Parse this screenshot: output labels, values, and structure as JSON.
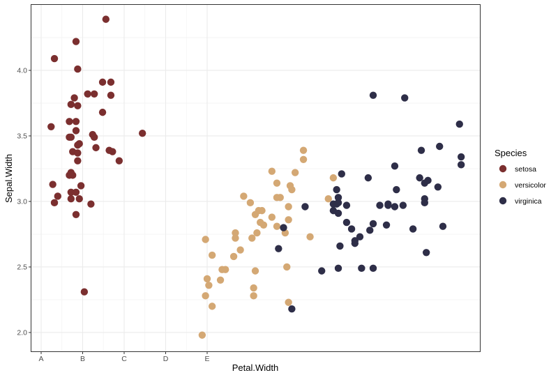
{
  "chart_data": {
    "type": "scatter",
    "xlabel": "Petal.Width",
    "ylabel": "Sepal.Width",
    "xlim": [
      -0.063,
      2.647
    ],
    "ylim": [
      1.851,
      4.505
    ],
    "x_ticks": [
      {
        "value": 0,
        "label": "A"
      },
      {
        "value": 0.25,
        "label": "B"
      },
      {
        "value": 0.5,
        "label": "C"
      },
      {
        "value": 0.75,
        "label": "D"
      },
      {
        "value": 1.0,
        "label": "E"
      }
    ],
    "y_ticks": [
      {
        "value": 2.0,
        "label": "2.0"
      },
      {
        "value": 2.5,
        "label": "2.5"
      },
      {
        "value": 3.0,
        "label": "3.0"
      },
      {
        "value": 3.5,
        "label": "3.5"
      },
      {
        "value": 4.0,
        "label": "4.0"
      }
    ],
    "grid": true,
    "legend": {
      "title": "Species",
      "position": "right"
    },
    "series": [
      {
        "name": "setosa",
        "color": "#7B2F2F",
        "points": [
          [
            0.39,
            4.39
          ],
          [
            0.21,
            4.22
          ],
          [
            0.08,
            4.09
          ],
          [
            0.22,
            4.01
          ],
          [
            0.37,
            3.91
          ],
          [
            0.42,
            3.91
          ],
          [
            0.28,
            3.82
          ],
          [
            0.32,
            3.82
          ],
          [
            0.42,
            3.81
          ],
          [
            0.2,
            3.79
          ],
          [
            0.18,
            3.74
          ],
          [
            0.22,
            3.73
          ],
          [
            0.37,
            3.68
          ],
          [
            0.17,
            3.61
          ],
          [
            0.21,
            3.61
          ],
          [
            0.06,
            3.57
          ],
          [
            0.21,
            3.54
          ],
          [
            0.61,
            3.52
          ],
          [
            0.17,
            3.49
          ],
          [
            0.18,
            3.49
          ],
          [
            0.31,
            3.51
          ],
          [
            0.32,
            3.49
          ],
          [
            0.23,
            3.44
          ],
          [
            0.22,
            3.43
          ],
          [
            0.33,
            3.41
          ],
          [
            0.41,
            3.39
          ],
          [
            0.43,
            3.38
          ],
          [
            0.19,
            3.38
          ],
          [
            0.22,
            3.37
          ],
          [
            0.47,
            3.31
          ],
          [
            0.22,
            3.31
          ],
          [
            0.18,
            3.22
          ],
          [
            0.17,
            3.2
          ],
          [
            0.19,
            3.2
          ],
          [
            0.07,
            3.13
          ],
          [
            0.24,
            3.12
          ],
          [
            0.18,
            3.07
          ],
          [
            0.21,
            3.07
          ],
          [
            0.1,
            3.04
          ],
          [
            0.18,
            3.02
          ],
          [
            0.23,
            3.02
          ],
          [
            0.08,
            2.99
          ],
          [
            0.3,
            2.98
          ],
          [
            0.21,
            2.9
          ],
          [
            0.26,
            2.31
          ]
        ]
      },
      {
        "name": "versicolor",
        "color": "#D4A874",
        "points": [
          [
            1.58,
            3.39
          ],
          [
            1.58,
            3.32
          ],
          [
            1.39,
            3.23
          ],
          [
            1.53,
            3.22
          ],
          [
            1.42,
            3.14
          ],
          [
            1.5,
            3.12
          ],
          [
            1.51,
            3.09
          ],
          [
            1.42,
            3.03
          ],
          [
            1.44,
            3.03
          ],
          [
            1.22,
            3.04
          ],
          [
            1.26,
            2.99
          ],
          [
            1.49,
            2.96
          ],
          [
            1.31,
            2.93
          ],
          [
            1.33,
            2.93
          ],
          [
            1.29,
            2.9
          ],
          [
            1.39,
            2.88
          ],
          [
            1.49,
            2.86
          ],
          [
            1.32,
            2.84
          ],
          [
            1.34,
            2.82
          ],
          [
            1.42,
            2.81
          ],
          [
            1.47,
            2.76
          ],
          [
            1.17,
            2.76
          ],
          [
            1.17,
            2.72
          ],
          [
            1.3,
            2.76
          ],
          [
            1.27,
            2.72
          ],
          [
            0.99,
            2.71
          ],
          [
            1.2,
            2.63
          ],
          [
            1.16,
            2.58
          ],
          [
            1.03,
            2.59
          ],
          [
            1.09,
            2.48
          ],
          [
            1.11,
            2.48
          ],
          [
            1.08,
            2.4
          ],
          [
            1.0,
            2.41
          ],
          [
            1.01,
            2.36
          ],
          [
            0.99,
            2.28
          ],
          [
            1.29,
            2.47
          ],
          [
            1.48,
            2.5
          ],
          [
            1.28,
            2.34
          ],
          [
            1.28,
            2.28
          ],
          [
            1.03,
            2.2
          ],
          [
            1.49,
            2.23
          ],
          [
            0.97,
            1.98
          ],
          [
            1.73,
            3.02
          ],
          [
            1.62,
            2.73
          ],
          [
            1.76,
            3.18
          ]
        ]
      },
      {
        "name": "virginica",
        "color": "#2E2E48",
        "points": [
          [
            2.0,
            3.81
          ],
          [
            2.19,
            3.79
          ],
          [
            2.52,
            3.59
          ],
          [
            2.29,
            3.39
          ],
          [
            2.4,
            3.42
          ],
          [
            2.13,
            3.27
          ],
          [
            2.53,
            3.34
          ],
          [
            2.53,
            3.28
          ],
          [
            1.81,
            3.21
          ],
          [
            1.97,
            3.18
          ],
          [
            2.28,
            3.18
          ],
          [
            2.33,
            3.16
          ],
          [
            2.31,
            3.14
          ],
          [
            2.39,
            3.11
          ],
          [
            2.14,
            3.09
          ],
          [
            1.78,
            3.09
          ],
          [
            1.79,
            3.03
          ],
          [
            1.79,
            2.99
          ],
          [
            1.84,
            2.97
          ],
          [
            1.76,
            2.98
          ],
          [
            1.78,
            2.98
          ],
          [
            1.76,
            2.93
          ],
          [
            1.79,
            2.91
          ],
          [
            2.04,
            2.97
          ],
          [
            2.09,
            2.97
          ],
          [
            2.09,
            2.98
          ],
          [
            2.13,
            2.96
          ],
          [
            2.18,
            2.97
          ],
          [
            2.31,
            3.02
          ],
          [
            2.31,
            2.99
          ],
          [
            1.59,
            2.96
          ],
          [
            1.84,
            2.84
          ],
          [
            1.87,
            2.79
          ],
          [
            1.98,
            2.78
          ],
          [
            2.08,
            2.82
          ],
          [
            2.24,
            2.79
          ],
          [
            2.42,
            2.81
          ],
          [
            2.0,
            2.83
          ],
          [
            1.92,
            2.73
          ],
          [
            1.89,
            2.7
          ],
          [
            1.89,
            2.68
          ],
          [
            1.8,
            2.66
          ],
          [
            2.32,
            2.61
          ],
          [
            1.46,
            2.8
          ],
          [
            1.43,
            2.64
          ],
          [
            1.79,
            2.49
          ],
          [
            1.69,
            2.47
          ],
          [
            1.93,
            2.49
          ],
          [
            2.0,
            2.49
          ],
          [
            1.51,
            2.18
          ]
        ]
      }
    ]
  }
}
